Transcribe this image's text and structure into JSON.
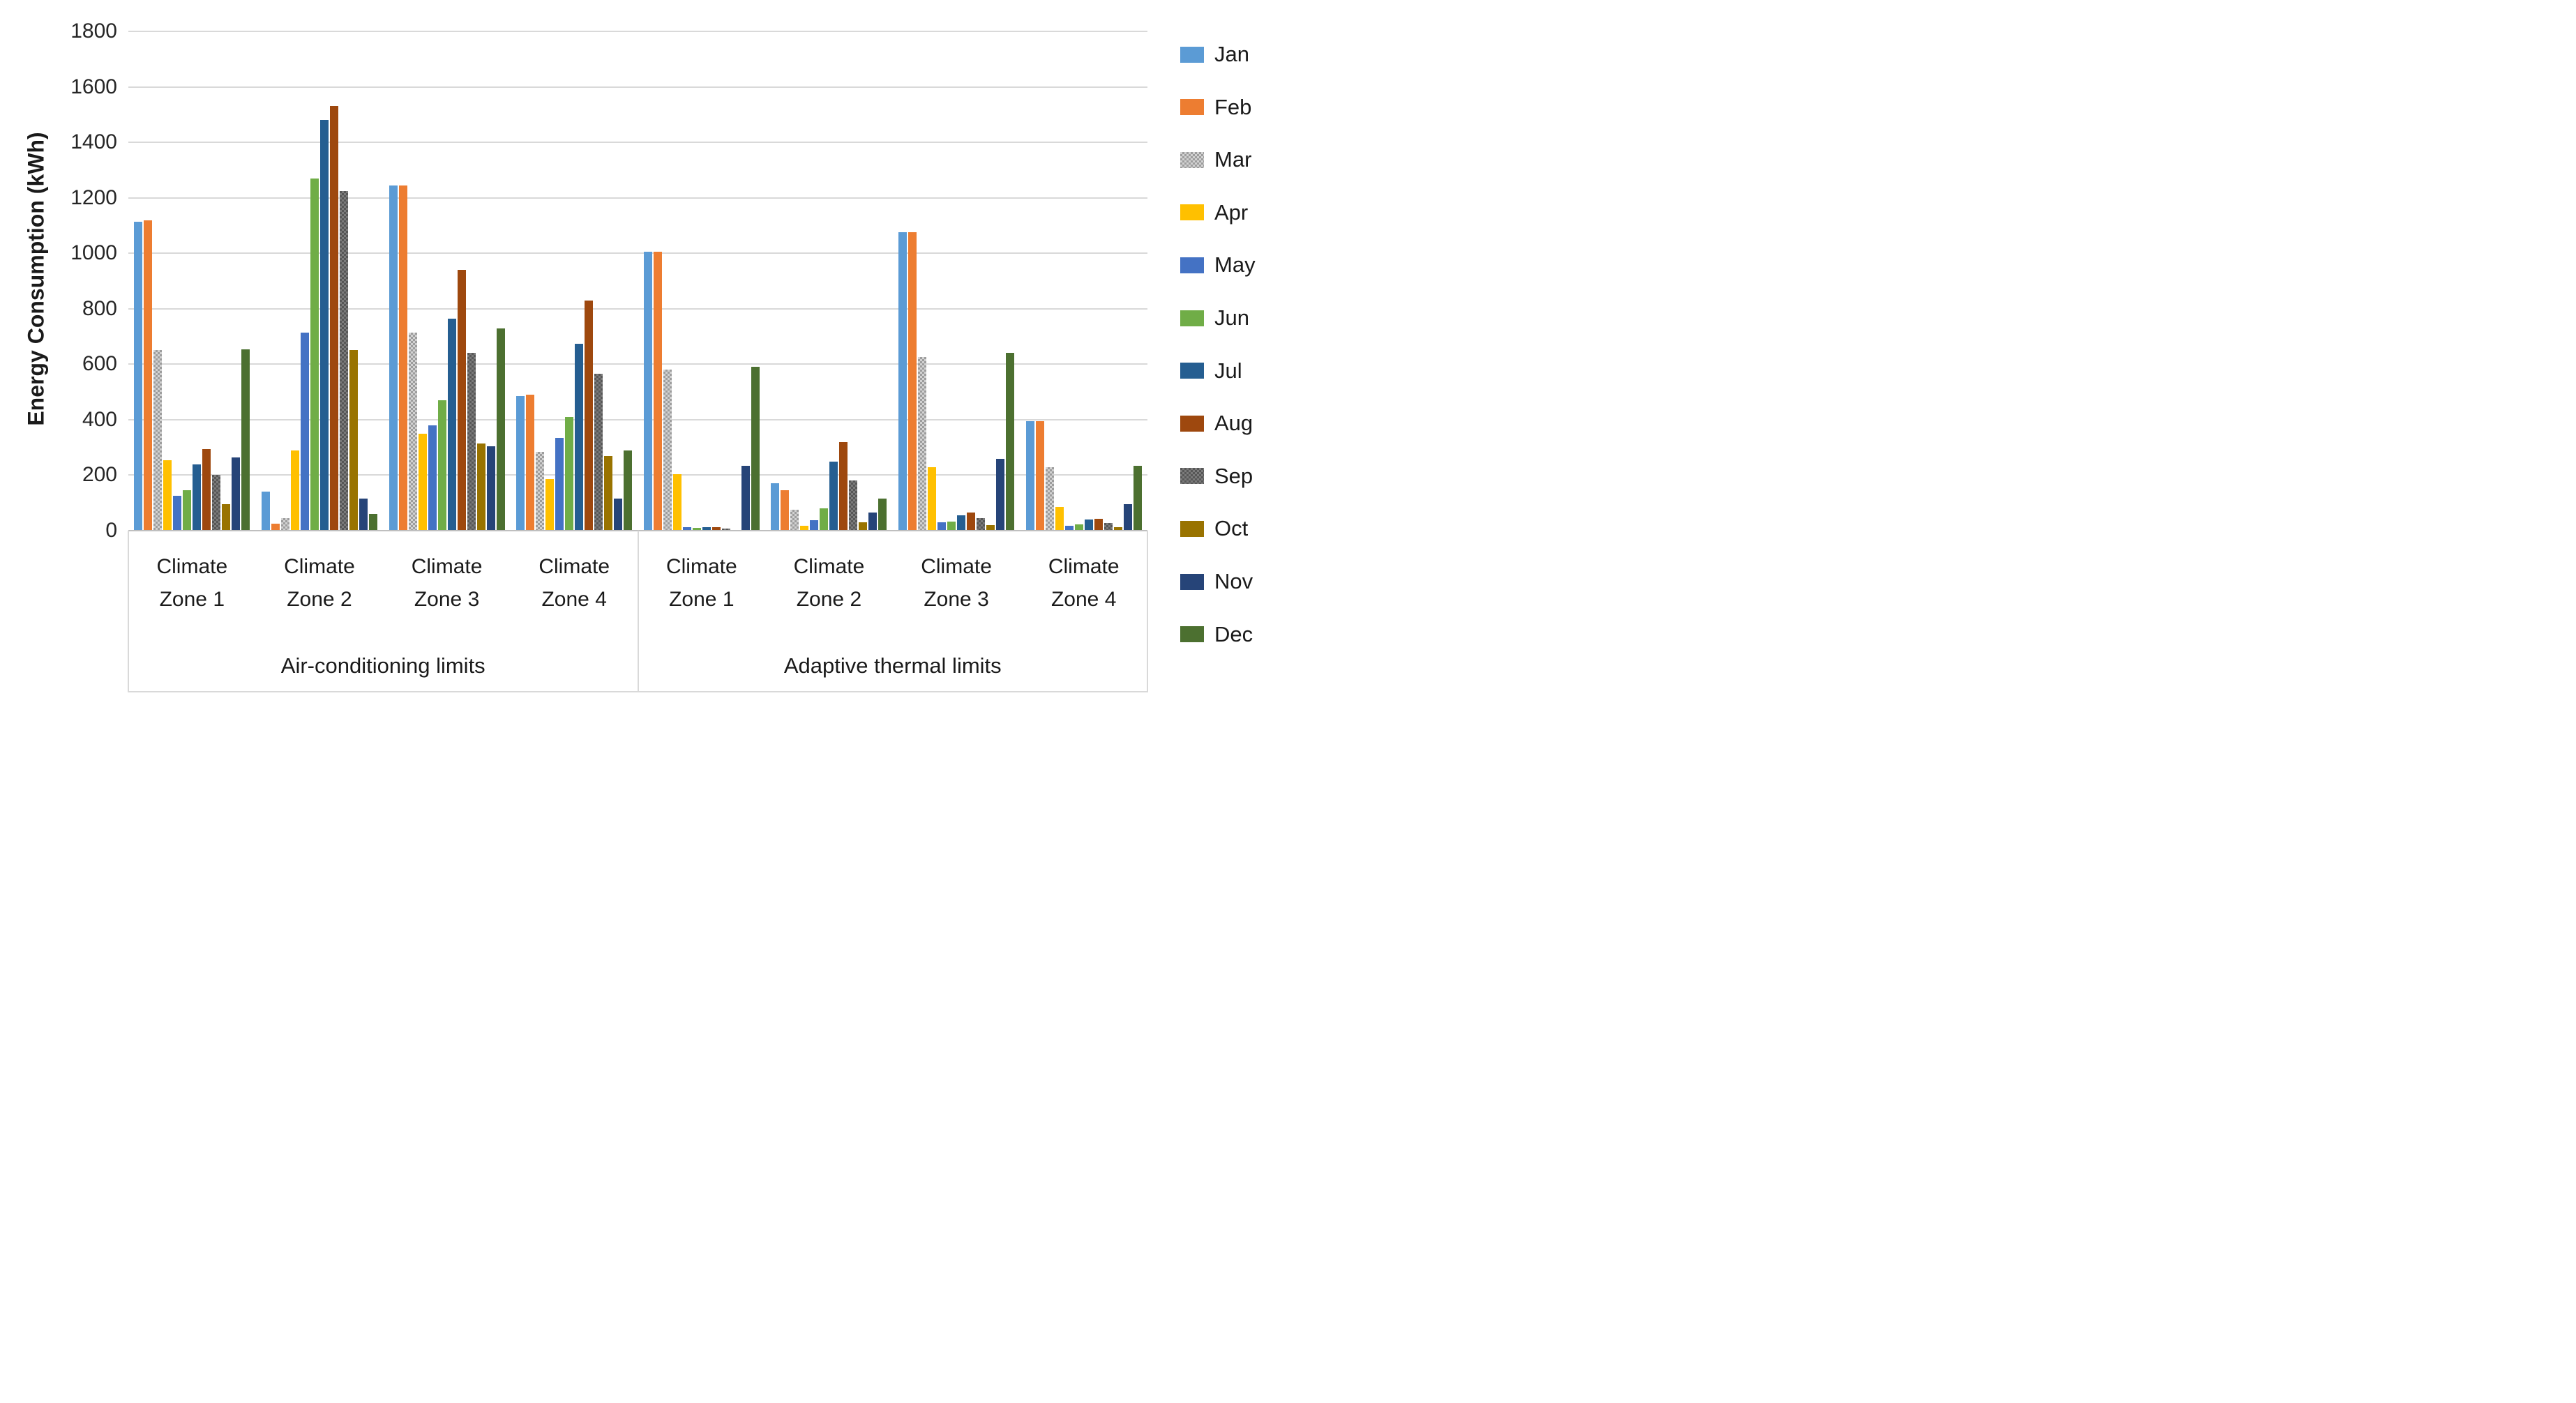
{
  "y_axis": {
    "title": "Energy Consumption (kWh)",
    "ticks": [
      0,
      200,
      400,
      600,
      800,
      1000,
      1200,
      1400,
      1600,
      1800
    ]
  },
  "chart_data": {
    "type": "bar",
    "ylabel": "Energy Consumption (kWh)",
    "ylim": [
      0,
      1800
    ],
    "y_tick_step": 200,
    "grid": true,
    "legend_position": "right",
    "sections": [
      "Air-conditioning limits",
      "Adaptive thermal limits"
    ],
    "categories": [
      "Climate Zone 1",
      "Climate Zone 2",
      "Climate Zone 3",
      "Climate Zone 4",
      "Climate Zone 1",
      "Climate Zone 2",
      "Climate Zone 3",
      "Climate Zone 4"
    ],
    "series": [
      {
        "name": "Jan",
        "color": "#5B9BD5",
        "pattern": null,
        "values": [
          1115,
          140,
          1245,
          485,
          1005,
          170,
          1075,
          395
        ]
      },
      {
        "name": "Feb",
        "color": "#ED7D31",
        "pattern": null,
        "values": [
          1120,
          25,
          1245,
          490,
          1005,
          145,
          1075,
          395
        ]
      },
      {
        "name": "Mar",
        "color": "#A6A6A6",
        "pattern": "light",
        "values": [
          650,
          45,
          715,
          285,
          580,
          75,
          625,
          230
        ]
      },
      {
        "name": "Apr",
        "color": "#FFC000",
        "pattern": null,
        "values": [
          255,
          290,
          350,
          185,
          205,
          18,
          230,
          85
        ]
      },
      {
        "name": "May",
        "color": "#4472C4",
        "pattern": null,
        "values": [
          125,
          715,
          380,
          335,
          12,
          37,
          30,
          18
        ]
      },
      {
        "name": "Jun",
        "color": "#70AD47",
        "pattern": null,
        "values": [
          145,
          1270,
          470,
          410,
          9,
          80,
          32,
          22
        ]
      },
      {
        "name": "Jul",
        "color": "#255E91",
        "pattern": null,
        "values": [
          240,
          1480,
          765,
          675,
          13,
          250,
          55,
          40
        ]
      },
      {
        "name": "Aug",
        "color": "#9E480E",
        "pattern": null,
        "values": [
          295,
          1530,
          940,
          830,
          13,
          320,
          65,
          42
        ]
      },
      {
        "name": "Sep",
        "color": "#636363",
        "pattern": "dark",
        "values": [
          200,
          1225,
          640,
          565,
          8,
          180,
          45,
          28
        ]
      },
      {
        "name": "Oct",
        "color": "#997300",
        "pattern": null,
        "values": [
          95,
          650,
          315,
          270,
          0,
          30,
          20,
          12
        ]
      },
      {
        "name": "Nov",
        "color": "#264478",
        "pattern": null,
        "values": [
          265,
          115,
          305,
          115,
          235,
          65,
          260,
          95
        ]
      },
      {
        "name": "Dec",
        "color": "#4C7030",
        "pattern": null,
        "values": [
          655,
          60,
          730,
          290,
          590,
          115,
          640,
          235
        ]
      }
    ]
  }
}
